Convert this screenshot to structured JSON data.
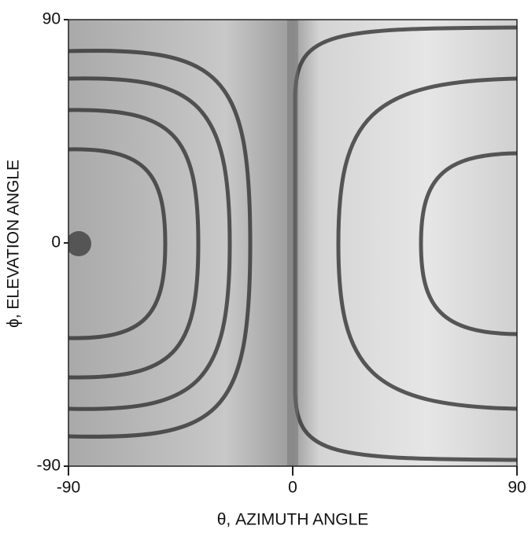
{
  "chart_data": {
    "type": "contour",
    "xlabel": "θ, AZIMUTH ANGLE",
    "ylabel": "ϕ, ELEVATION ANGLE",
    "xlim": [
      -90,
      90
    ],
    "ylim": [
      -90,
      90
    ],
    "xticks": [
      -90,
      0,
      90
    ],
    "yticks": [
      -90,
      0,
      90
    ]
  }
}
